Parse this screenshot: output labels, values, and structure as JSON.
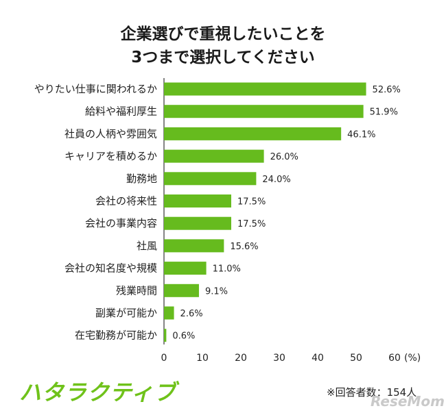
{
  "chart_data": {
    "type": "bar",
    "orientation": "horizontal",
    "title_lines": [
      "企業選びで重視したいことを",
      "3つまで選択してください"
    ],
    "categories": [
      "やりたい仕事に関われるか",
      "給料や福利厚生",
      "社員の人柄や雰囲気",
      "キャリアを積めるか",
      "勤務地",
      "会社の将来性",
      "会社の事業内容",
      "社風",
      "会社の知名度や規模",
      "残業時間",
      "副業が可能か",
      "在宅勤務が可能か"
    ],
    "values": [
      52.6,
      51.9,
      46.1,
      26.0,
      24.0,
      17.5,
      17.5,
      15.6,
      11.0,
      9.1,
      2.6,
      0.6
    ],
    "value_labels": [
      "52.6%",
      "51.9%",
      "46.1%",
      "26.0%",
      "24.0%",
      "17.5%",
      "17.5%",
      "15.6%",
      "11.0%",
      "9.1%",
      "2.6%",
      "0.6%"
    ],
    "xlim": [
      0,
      60
    ],
    "xticks": [
      "0",
      "10",
      "20",
      "30",
      "40",
      "50",
      "60"
    ],
    "xunit": "(%)",
    "bar_color": "#66bb1e",
    "grid": false
  },
  "footer": {
    "logo_text": "ハタラクティブ",
    "note": "※回答者数：154人",
    "watermark": "ReseMom"
  }
}
